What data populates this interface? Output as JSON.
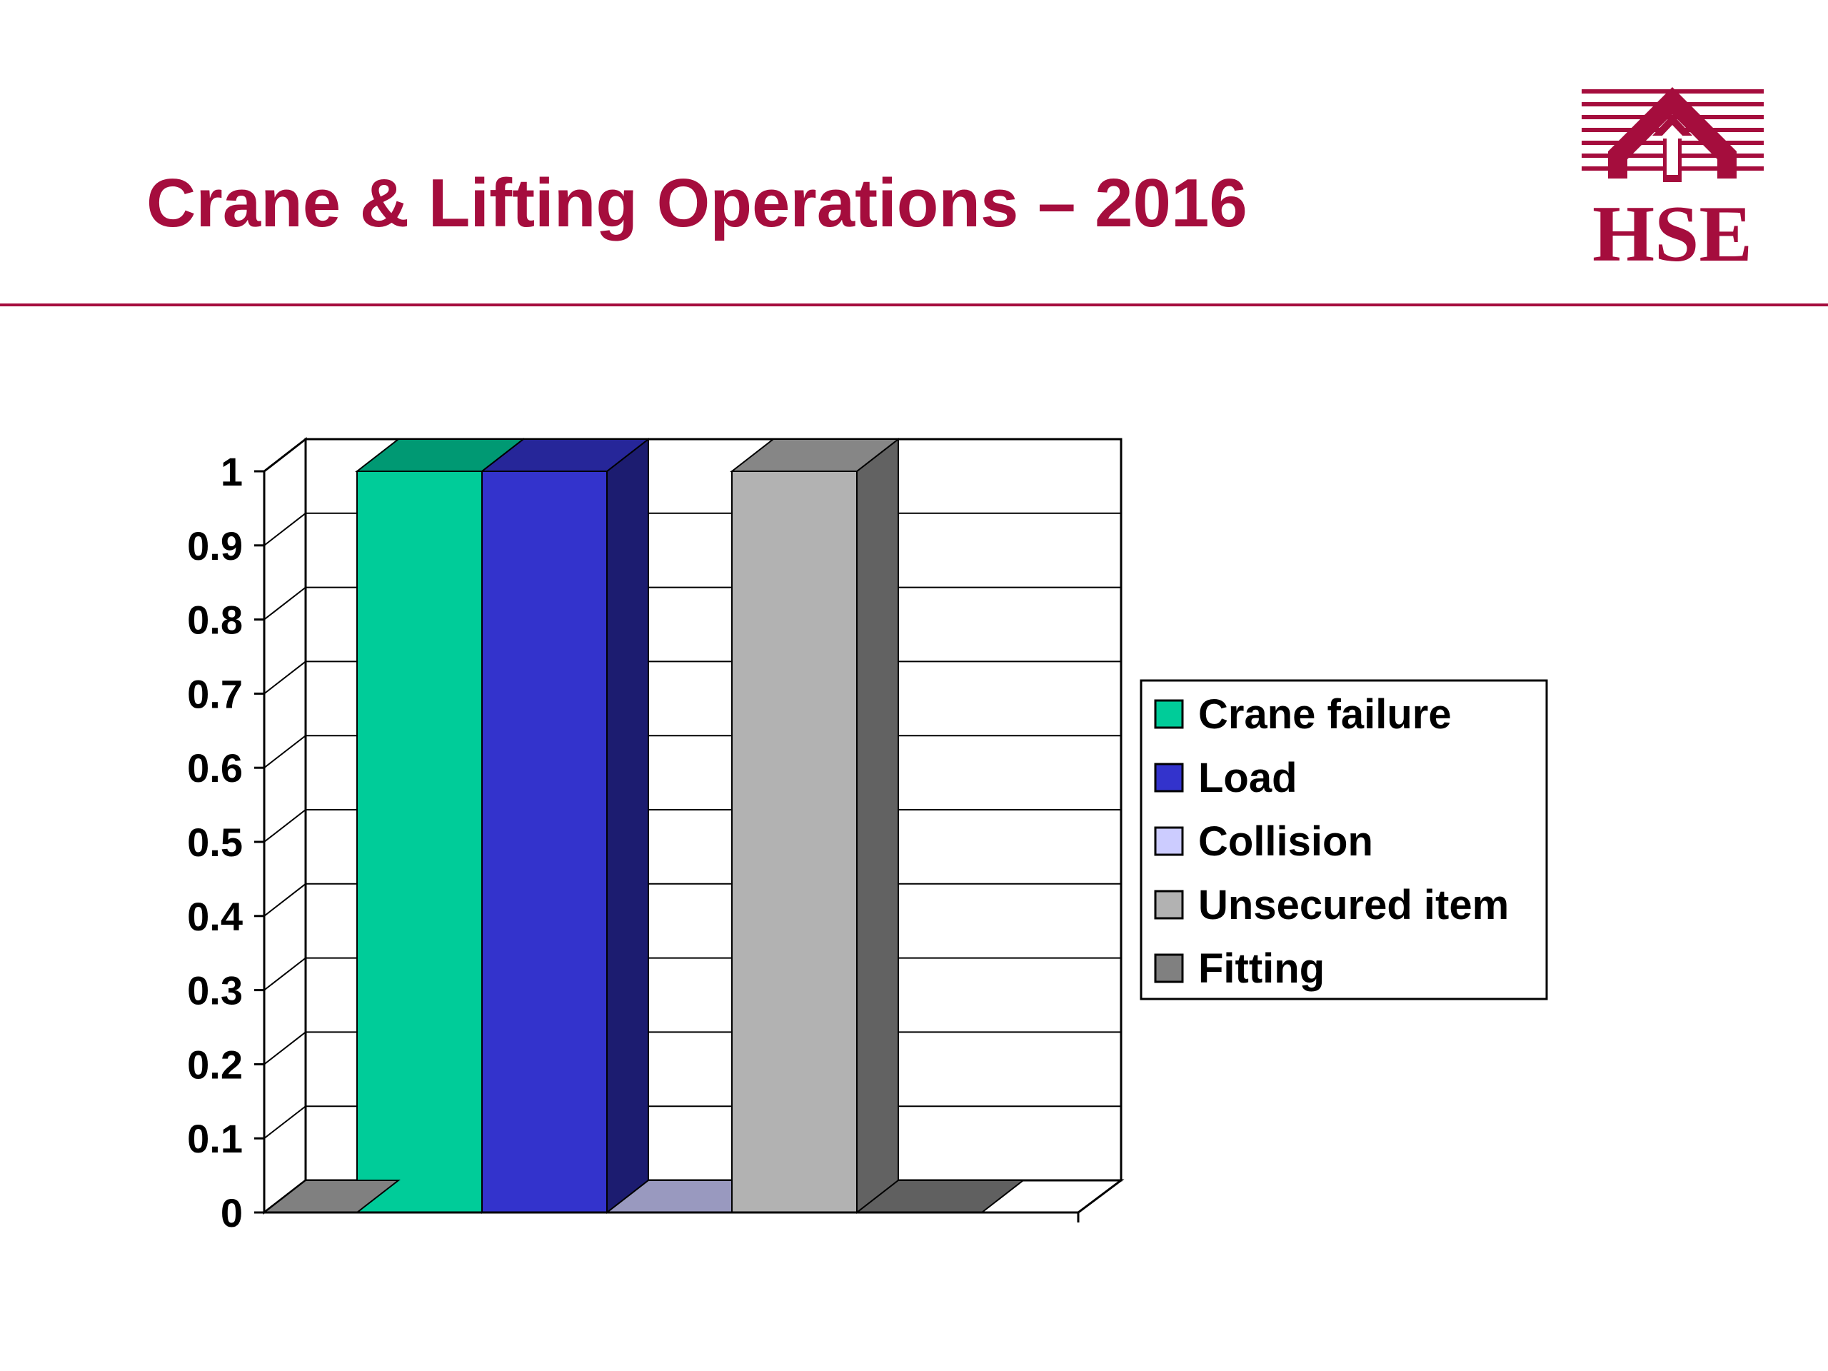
{
  "slide": {
    "title": "Crane & Lifting Operations – 2016",
    "accent_color": "#a50d3d"
  },
  "logo": {
    "text": "HSE",
    "icon": "hse-house-icon"
  },
  "chart_data": {
    "type": "bar",
    "three_d": true,
    "title": "",
    "xlabel": "",
    "ylabel": "",
    "ylim": [
      0,
      1
    ],
    "yticks": [
      "0",
      "0.1",
      "0.2",
      "0.3",
      "0.4",
      "0.5",
      "0.6",
      "0.7",
      "0.8",
      "0.9",
      "1"
    ],
    "grid": true,
    "legend_position": "right",
    "series": [
      {
        "name": "Crane failure",
        "value": 1,
        "color": "#00cc99"
      },
      {
        "name": "Load",
        "value": 1,
        "color": "#3333cc"
      },
      {
        "name": "Collision",
        "value": 0,
        "color": "#ccccff"
      },
      {
        "name": "Unsecured item",
        "value": 1,
        "color": "#b2b2b2"
      },
      {
        "name": "Fitting",
        "value": 0,
        "color": "#808080"
      }
    ]
  }
}
